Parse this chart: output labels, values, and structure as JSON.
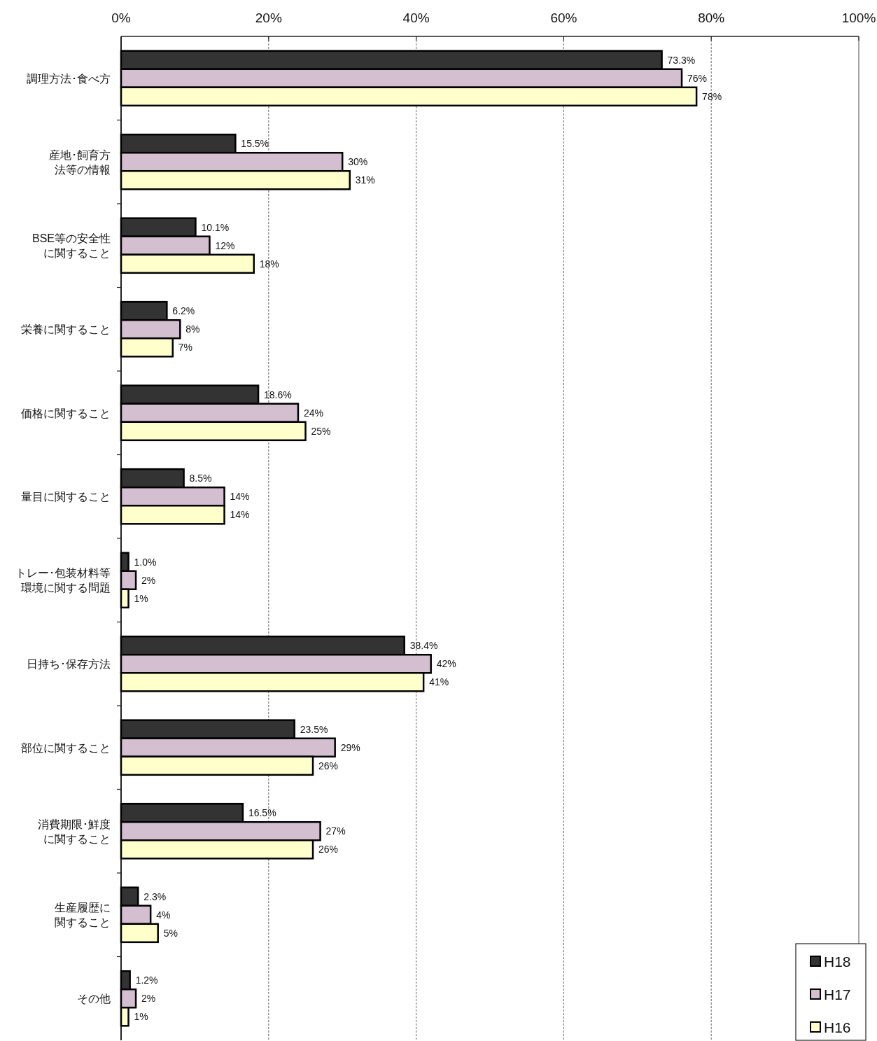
{
  "chart_data": {
    "type": "bar",
    "orientation": "horizontal",
    "categories": [
      "調理方法･食べ方",
      "産地･飼育方法等の情報",
      "BSE等の安全性に関すること",
      "栄養に関すること",
      "価格に関すること",
      "量目に関すること",
      "トレー･包装材料等環境に関する問題",
      "日持ち･保存方法",
      "部位に関すること",
      "消費期限･鮮度に関すること",
      "生産履歴に関すること",
      "その他"
    ],
    "series": [
      {
        "name": "H18",
        "color": "#333333",
        "values": [
          73.3,
          15.5,
          10.1,
          6.2,
          18.6,
          8.5,
          1.0,
          38.4,
          23.5,
          16.5,
          2.3,
          1.2
        ],
        "value_labels": [
          "73.3%",
          "15.5%",
          "10.1%",
          "6.2%",
          "18.6%",
          "8.5%",
          "1.0%",
          "38.4%",
          "23.5%",
          "16.5%",
          "2.3%",
          "1.2%"
        ]
      },
      {
        "name": "H17",
        "color": "#d3bfcf",
        "values": [
          76,
          30,
          12,
          8,
          24,
          14,
          2,
          42,
          29,
          27,
          4,
          2
        ],
        "value_labels": [
          "76%",
          "30%",
          "12%",
          "8%",
          "24%",
          "14%",
          "2%",
          "42%",
          "29%",
          "27%",
          "4%",
          "2%"
        ]
      },
      {
        "name": "H16",
        "color": "#ffffcc",
        "values": [
          78,
          31,
          18,
          7,
          25,
          14,
          1,
          41,
          26,
          26,
          5,
          1
        ],
        "value_labels": [
          "78%",
          "31%",
          "18%",
          "7%",
          "25%",
          "14%",
          "1%",
          "41%",
          "26%",
          "26%",
          "5%",
          "1%"
        ]
      }
    ],
    "xlim": [
      0,
      100
    ],
    "xticks": [
      {
        "value": 0,
        "label": "0%"
      },
      {
        "value": 20,
        "label": "20%"
      },
      {
        "value": 40,
        "label": "40%"
      },
      {
        "value": 60,
        "label": "60%"
      },
      {
        "value": 80,
        "label": "80%"
      },
      {
        "value": 100,
        "label": "100%"
      }
    ],
    "grid": "x",
    "legend": "bottom right"
  }
}
